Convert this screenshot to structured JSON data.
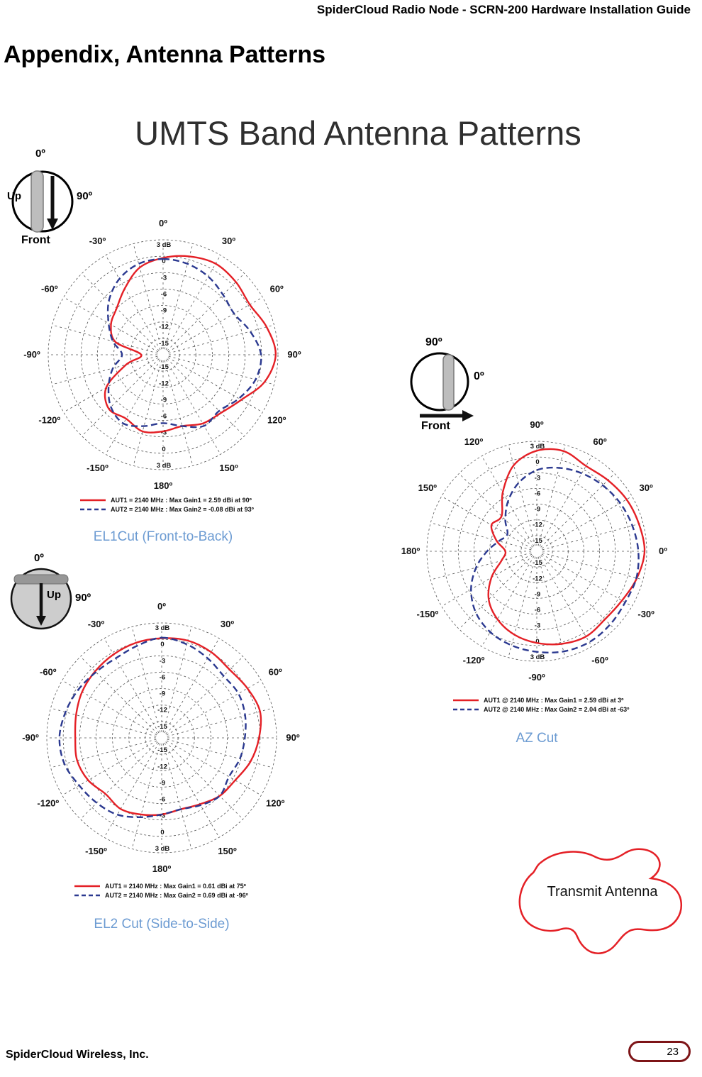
{
  "page": {
    "header": "SpiderCloud Radio Node - SCRN-200 Hardware Installation Guide",
    "title": "Appendix, Antenna Patterns",
    "subtitle": "UMTS Band Antenna Patterns",
    "footer_left": "SpiderCloud Wireless, Inc.",
    "page_number": "23"
  },
  "colors": {
    "aut1": "#E42026",
    "aut2": "#2B3990",
    "caption": "#6C9BD2",
    "badge_border": "#7D1417"
  },
  "icons": {
    "el1": {
      "angle_top": "0º",
      "label_left": "Up",
      "angle_right": "90º",
      "label_bottom": "Front"
    },
    "az": {
      "angle_top": "90º",
      "angle_right": "0º",
      "label_bottom": "Front"
    },
    "el2": {
      "angle_top": "0º",
      "label_mid": "Up",
      "angle_right": "90º"
    }
  },
  "transmit_antenna": {
    "label": "Transmit Antenna"
  },
  "chart_data": [
    {
      "id": "el1",
      "type": "polar",
      "caption": "EL1Cut (Front-to-Back)",
      "orientation": "el",
      "radius": 162,
      "rmin": -18,
      "rmax": 3,
      "step": 3,
      "angle_labels": [
        {
          "a": 0,
          "t": "0º"
        },
        {
          "a": 30,
          "t": "30º"
        },
        {
          "a": 60,
          "t": "60º"
        },
        {
          "a": 90,
          "t": "90º"
        },
        {
          "a": 120,
          "t": "120º"
        },
        {
          "a": 150,
          "t": "150º"
        },
        {
          "a": 180,
          "t": "180º"
        },
        {
          "a": -150,
          "t": "-150º"
        },
        {
          "a": -120,
          "t": "-120º"
        },
        {
          "a": -90,
          "t": "-90º"
        },
        {
          "a": -60,
          "t": "-60º"
        },
        {
          "a": -30,
          "t": "-30º"
        }
      ],
      "radial_labels_top": [
        "3 dB",
        "0",
        "-3",
        "-6",
        "-9",
        "-12",
        "-15"
      ],
      "radial_labels_bottom": [
        "-15",
        "-12",
        "-9",
        "-6",
        "-3",
        "0",
        "3 dB"
      ],
      "series": [
        {
          "name": "AUT1",
          "color_key": "aut1",
          "dashed": false,
          "legend": "AUT1 = 2140 MHz : Max Gain1 = 2.59 dBi at 90º",
          "points": [
            [
              0,
              -0.3
            ],
            [
              15,
              0.6
            ],
            [
              30,
              1.2
            ],
            [
              45,
              0.8
            ],
            [
              60,
              0.3
            ],
            [
              75,
              1.6
            ],
            [
              90,
              2.59
            ],
            [
              105,
              1.2
            ],
            [
              120,
              -1.5
            ],
            [
              135,
              -3
            ],
            [
              150,
              -3.5
            ],
            [
              165,
              -4.5
            ],
            [
              180,
              -4
            ],
            [
              -165,
              -3.5
            ],
            [
              -150,
              -4.5
            ],
            [
              -135,
              -4
            ],
            [
              -120,
              -6
            ],
            [
              -105,
              -11
            ],
            [
              -90,
              -14
            ],
            [
              -75,
              -9
            ],
            [
              -60,
              -7
            ],
            [
              -45,
              -6
            ],
            [
              -30,
              -4
            ],
            [
              -15,
              -1.5
            ]
          ]
        },
        {
          "name": "AUT2",
          "color_key": "aut2",
          "dashed": true,
          "legend": "AUT2 = 2140 MHz : Max Gain2 = -0.08 dBi at 93º",
          "points": [
            [
              0,
              -0.5
            ],
            [
              15,
              -0.8
            ],
            [
              30,
              -1.5
            ],
            [
              45,
              -2.5
            ],
            [
              60,
              -3
            ],
            [
              75,
              -1.5
            ],
            [
              90,
              -0.1
            ],
            [
              105,
              -0.5
            ],
            [
              120,
              -2
            ],
            [
              135,
              -3.5
            ],
            [
              150,
              -3
            ],
            [
              165,
              -4.5
            ],
            [
              180,
              -5.5
            ],
            [
              -165,
              -4.5
            ],
            [
              -150,
              -3.5
            ],
            [
              -135,
              -4.5
            ],
            [
              -120,
              -6.5
            ],
            [
              -105,
              -8.5
            ],
            [
              -90,
              -10.5
            ],
            [
              -75,
              -8.5
            ],
            [
              -60,
              -6.5
            ],
            [
              -45,
              -4
            ],
            [
              -30,
              -2
            ],
            [
              -15,
              -0.8
            ]
          ]
        }
      ]
    },
    {
      "id": "az",
      "type": "polar",
      "caption": "AZ Cut",
      "orientation": "az",
      "radius": 155,
      "rmin": -18,
      "rmax": 3,
      "step": 3,
      "angle_labels": [
        {
          "a": 90,
          "t": "90º"
        },
        {
          "a": 60,
          "t": "60º"
        },
        {
          "a": 30,
          "t": "30º"
        },
        {
          "a": 0,
          "t": "0º"
        },
        {
          "a": -30,
          "t": "-30º"
        },
        {
          "a": -60,
          "t": "-60º"
        },
        {
          "a": -90,
          "t": "-90º"
        },
        {
          "a": -120,
          "t": "-120º"
        },
        {
          "a": -150,
          "t": "-150º"
        },
        {
          "a": 180,
          "t": "180º"
        },
        {
          "a": 150,
          "t": "150º"
        },
        {
          "a": 120,
          "t": "120º"
        }
      ],
      "radial_labels_top": [
        "3 dB",
        "0",
        "-3",
        "-6",
        "-9",
        "-12",
        "-15"
      ],
      "radial_labels_bottom": [
        "-15",
        "-12",
        "-9",
        "-6",
        "-3",
        "0",
        "3 dB"
      ],
      "series": [
        {
          "name": "AUT1",
          "color_key": "aut1",
          "dashed": false,
          "legend": "AUT1 @ 2140 MHz : Max Gain1 = 2.59 dBi at 3º",
          "points": [
            [
              90,
              1.2
            ],
            [
              75,
              1.8
            ],
            [
              60,
              0.8
            ],
            [
              45,
              1.2
            ],
            [
              30,
              1.8
            ],
            [
              15,
              2.2
            ],
            [
              0,
              2.59
            ],
            [
              -15,
              1.8
            ],
            [
              -30,
              0.8
            ],
            [
              -45,
              0.4
            ],
            [
              -60,
              0.8
            ],
            [
              -75,
              0.3
            ],
            [
              -90,
              -0.5
            ],
            [
              -105,
              -1.5
            ],
            [
              -120,
              -3
            ],
            [
              -135,
              -5
            ],
            [
              -150,
              -8
            ],
            [
              -165,
              -11
            ],
            [
              180,
              -12
            ],
            [
              165,
              -10
            ],
            [
              150,
              -8
            ],
            [
              135,
              -8.5
            ],
            [
              120,
              -5
            ],
            [
              105,
              -1
            ]
          ]
        },
        {
          "name": "AUT2",
          "color_key": "aut2",
          "dashed": true,
          "legend": "AUT2 @ 2140 MHz : Max Gain2 = 2.04 dBi at -63º",
          "points": [
            [
              90,
              -2.5
            ],
            [
              75,
              -1.5
            ],
            [
              60,
              -0.8
            ],
            [
              45,
              -0.2
            ],
            [
              30,
              0.4
            ],
            [
              15,
              0.9
            ],
            [
              0,
              1.4
            ],
            [
              -15,
              1.7
            ],
            [
              -30,
              1.5
            ],
            [
              -45,
              1.8
            ],
            [
              -60,
              2.04
            ],
            [
              -75,
              1.8
            ],
            [
              -90,
              1.2
            ],
            [
              -105,
              0.6
            ],
            [
              -120,
              -0.2
            ],
            [
              -135,
              -1.5
            ],
            [
              -150,
              -3.5
            ],
            [
              -165,
              -6
            ],
            [
              180,
              -8.5
            ],
            [
              165,
              -10.5
            ],
            [
              150,
              -11.5
            ],
            [
              135,
              -9.5
            ],
            [
              120,
              -7
            ],
            [
              105,
              -4.5
            ]
          ]
        }
      ]
    },
    {
      "id": "el2",
      "type": "polar",
      "caption": "EL2 Cut (Side-to-Side)",
      "orientation": "el",
      "radius": 162,
      "rmin": -18,
      "rmax": 3,
      "step": 3,
      "angle_labels": [
        {
          "a": 0,
          "t": "0º"
        },
        {
          "a": 30,
          "t": "30º"
        },
        {
          "a": 60,
          "t": "60º"
        },
        {
          "a": 90,
          "t": "90º"
        },
        {
          "a": 120,
          "t": "120º"
        },
        {
          "a": 150,
          "t": "150º"
        },
        {
          "a": 180,
          "t": "180º"
        },
        {
          "a": -150,
          "t": "-150º"
        },
        {
          "a": -120,
          "t": "-120º"
        },
        {
          "a": -90,
          "t": "-90º"
        },
        {
          "a": -60,
          "t": "-60º"
        },
        {
          "a": -30,
          "t": "-30º"
        }
      ],
      "radial_labels_top": [
        "3 dB",
        "0",
        "-3",
        "-6",
        "-9",
        "-12",
        "-15"
      ],
      "radial_labels_bottom": [
        "-15",
        "-12",
        "-9",
        "-6",
        "-3",
        "0",
        "3 dB"
      ],
      "series": [
        {
          "name": "AUT1",
          "color_key": "aut1",
          "dashed": false,
          "legend": "AUT1 = 2140 MHz :  Max Gain1 = 0.61 dBi at 75º",
          "points": [
            [
              0,
              0.2
            ],
            [
              15,
              0.4
            ],
            [
              30,
              0.1
            ],
            [
              45,
              -0.4
            ],
            [
              60,
              0.1
            ],
            [
              75,
              0.61
            ],
            [
              90,
              -0.2
            ],
            [
              105,
              -1.2
            ],
            [
              120,
              -2.5
            ],
            [
              135,
              -3
            ],
            [
              150,
              -4
            ],
            [
              165,
              -4.5
            ],
            [
              180,
              -4
            ],
            [
              -165,
              -3.5
            ],
            [
              -150,
              -3
            ],
            [
              -135,
              -3.5
            ],
            [
              -120,
              -2.5
            ],
            [
              -105,
              -2
            ],
            [
              -90,
              -2.2
            ],
            [
              -75,
              -1.8
            ],
            [
              -60,
              -1.2
            ],
            [
              -45,
              -0.8
            ],
            [
              -30,
              -0.4
            ],
            [
              -15,
              0
            ]
          ]
        },
        {
          "name": "AUT2",
          "color_key": "aut2",
          "dashed": true,
          "legend": "AUT2 = 2140 MHz :  Max Gain2 = 0.69 dBi at -96º",
          "points": [
            [
              0,
              0.3
            ],
            [
              15,
              -0.3
            ],
            [
              30,
              -1.2
            ],
            [
              45,
              -2
            ],
            [
              60,
              -1.8
            ],
            [
              75,
              -2.2
            ],
            [
              90,
              -2.8
            ],
            [
              105,
              -3.2
            ],
            [
              120,
              -3.8
            ],
            [
              135,
              -3
            ],
            [
              150,
              -3.8
            ],
            [
              165,
              -4.5
            ],
            [
              180,
              -4
            ],
            [
              -165,
              -3
            ],
            [
              -150,
              -1.8
            ],
            [
              -135,
              -1.2
            ],
            [
              -120,
              -0.6
            ],
            [
              -105,
              0.4
            ],
            [
              -90,
              0.69
            ],
            [
              -75,
              0.2
            ],
            [
              -60,
              -0.4
            ],
            [
              -45,
              -1
            ],
            [
              -30,
              -1.2
            ],
            [
              -15,
              -0.6
            ]
          ]
        }
      ]
    }
  ]
}
